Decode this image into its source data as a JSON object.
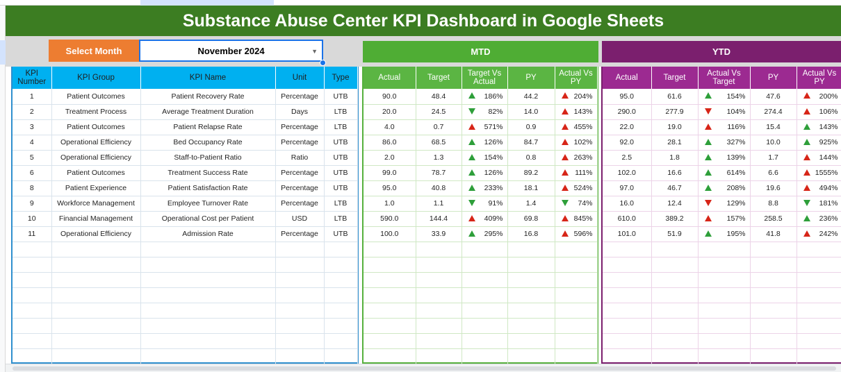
{
  "title": "Substance Abuse Center KPI Dashboard in Google Sheets",
  "select_month_label": "Select Month",
  "selected_month": "November 2024",
  "mtd_label": "MTD",
  "ytd_label": "YTD",
  "colors": {
    "title_bg": "#3c7d22",
    "mtd": "#4fad34",
    "ytd": "#7b1f6e",
    "kpi_header": "#00b0f0",
    "select_month_bg": "#ed7d31"
  },
  "kpi_headers": [
    "KPI Number",
    "KPI Group",
    "KPI Name",
    "Unit",
    "Type"
  ],
  "mtd_headers": [
    "Actual",
    "Target",
    "Target Vs Actual",
    "PY",
    "Actual Vs PY"
  ],
  "ytd_headers": [
    "Actual",
    "Target",
    "Actual Vs Target",
    "PY",
    "Actual Vs PY"
  ],
  "rows": [
    {
      "num": "1",
      "group": "Patient Outcomes",
      "name": "Patient Recovery Rate",
      "unit": "Percentage",
      "type": "UTB",
      "mtd": {
        "actual": "90.0",
        "target": "48.4",
        "tva": "186%",
        "tva_icon": "up-green",
        "py": "44.2",
        "avp": "204%",
        "avp_icon": "up-red"
      },
      "ytd": {
        "actual": "95.0",
        "target": "61.6",
        "avt": "154%",
        "avt_icon": "up-green",
        "py": "47.6",
        "avp": "200%",
        "avp_icon": "up-red"
      }
    },
    {
      "num": "2",
      "group": "Treatment Process",
      "name": "Average Treatment Duration",
      "unit": "Days",
      "type": "LTB",
      "mtd": {
        "actual": "20.0",
        "target": "24.5",
        "tva": "82%",
        "tva_icon": "down-green",
        "py": "14.0",
        "avp": "143%",
        "avp_icon": "up-red"
      },
      "ytd": {
        "actual": "290.0",
        "target": "277.9",
        "avt": "104%",
        "avt_icon": "down-red",
        "py": "274.4",
        "avp": "106%",
        "avp_icon": "up-red"
      }
    },
    {
      "num": "3",
      "group": "Patient Outcomes",
      "name": "Patient Relapse Rate",
      "unit": "Percentage",
      "type": "LTB",
      "mtd": {
        "actual": "4.0",
        "target": "0.7",
        "tva": "571%",
        "tva_icon": "up-red",
        "py": "0.9",
        "avp": "455%",
        "avp_icon": "up-red"
      },
      "ytd": {
        "actual": "22.0",
        "target": "19.0",
        "avt": "116%",
        "avt_icon": "up-red",
        "py": "15.4",
        "avp": "143%",
        "avp_icon": "up-green"
      }
    },
    {
      "num": "4",
      "group": "Operational Efficiency",
      "name": "Bed Occupancy Rate",
      "unit": "Percentage",
      "type": "UTB",
      "mtd": {
        "actual": "86.0",
        "target": "68.5",
        "tva": "126%",
        "tva_icon": "up-green",
        "py": "84.7",
        "avp": "102%",
        "avp_icon": "up-red"
      },
      "ytd": {
        "actual": "92.0",
        "target": "28.1",
        "avt": "327%",
        "avt_icon": "up-green",
        "py": "10.0",
        "avp": "925%",
        "avp_icon": "up-green"
      }
    },
    {
      "num": "5",
      "group": "Operational Efficiency",
      "name": "Staff-to-Patient Ratio",
      "unit": "Ratio",
      "type": "UTB",
      "mtd": {
        "actual": "2.0",
        "target": "1.3",
        "tva": "154%",
        "tva_icon": "up-green",
        "py": "0.8",
        "avp": "263%",
        "avp_icon": "up-red"
      },
      "ytd": {
        "actual": "2.5",
        "target": "1.8",
        "avt": "139%",
        "avt_icon": "up-green",
        "py": "1.7",
        "avp": "144%",
        "avp_icon": "up-red"
      }
    },
    {
      "num": "6",
      "group": "Patient Outcomes",
      "name": "Treatment Success Rate",
      "unit": "Percentage",
      "type": "UTB",
      "mtd": {
        "actual": "99.0",
        "target": "78.7",
        "tva": "126%",
        "tva_icon": "up-green",
        "py": "89.2",
        "avp": "111%",
        "avp_icon": "up-red"
      },
      "ytd": {
        "actual": "102.0",
        "target": "16.6",
        "avt": "614%",
        "avt_icon": "up-green",
        "py": "6.6",
        "avp": "1555%",
        "avp_icon": "up-red"
      }
    },
    {
      "num": "8",
      "group": "Patient Experience",
      "name": "Patient Satisfaction Rate",
      "unit": "Percentage",
      "type": "UTB",
      "mtd": {
        "actual": "95.0",
        "target": "40.8",
        "tva": "233%",
        "tva_icon": "up-green",
        "py": "18.1",
        "avp": "524%",
        "avp_icon": "up-red"
      },
      "ytd": {
        "actual": "97.0",
        "target": "46.7",
        "avt": "208%",
        "avt_icon": "up-green",
        "py": "19.6",
        "avp": "494%",
        "avp_icon": "up-red"
      }
    },
    {
      "num": "9",
      "group": "Workforce Management",
      "name": "Employee Turnover Rate",
      "unit": "Percentage",
      "type": "LTB",
      "mtd": {
        "actual": "1.0",
        "target": "1.1",
        "tva": "91%",
        "tva_icon": "down-green",
        "py": "1.4",
        "avp": "74%",
        "avp_icon": "down-green"
      },
      "ytd": {
        "actual": "16.0",
        "target": "12.4",
        "avt": "129%",
        "avt_icon": "down-red",
        "py": "8.8",
        "avp": "181%",
        "avp_icon": "down-green"
      }
    },
    {
      "num": "10",
      "group": "Financial Management",
      "name": "Operational Cost per Patient",
      "unit": "USD",
      "type": "LTB",
      "mtd": {
        "actual": "590.0",
        "target": "144.4",
        "tva": "409%",
        "tva_icon": "up-red",
        "py": "69.8",
        "avp": "845%",
        "avp_icon": "up-red"
      },
      "ytd": {
        "actual": "610.0",
        "target": "389.2",
        "avt": "157%",
        "avt_icon": "up-red",
        "py": "258.5",
        "avp": "236%",
        "avp_icon": "up-green"
      }
    },
    {
      "num": "11",
      "group": "Operational Efficiency",
      "name": "Admission Rate",
      "unit": "Percentage",
      "type": "UTB",
      "mtd": {
        "actual": "100.0",
        "target": "33.9",
        "tva": "295%",
        "tva_icon": "up-green",
        "py": "16.8",
        "avp": "596%",
        "avp_icon": "up-red"
      },
      "ytd": {
        "actual": "101.0",
        "target": "51.9",
        "avt": "195%",
        "avt_icon": "up-green",
        "py": "41.8",
        "avp": "242%",
        "avp_icon": "up-red"
      }
    }
  ],
  "empty_rows": 8
}
